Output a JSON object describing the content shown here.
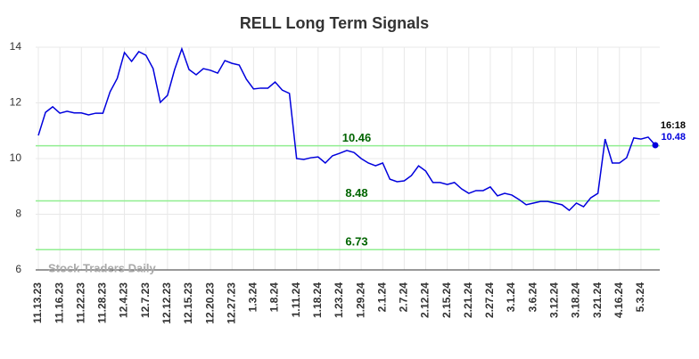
{
  "chart_data": {
    "type": "line",
    "title": "RELL Long Term Signals",
    "categories": [
      "11.13.23",
      null,
      null,
      "11.16.23",
      null,
      null,
      "11.22.23",
      null,
      null,
      "11.28.23",
      null,
      null,
      "12.4.23",
      null,
      null,
      "12.7.23",
      null,
      null,
      "12.12.23",
      null,
      null,
      "12.15.23",
      null,
      null,
      "12.20.23",
      null,
      null,
      "12.27.23",
      null,
      null,
      "1.3.24",
      null,
      null,
      "1.8.24",
      null,
      null,
      "1.11.24",
      null,
      null,
      "1.18.24",
      null,
      null,
      "1.23.24",
      null,
      null,
      "1.29.24",
      null,
      null,
      "2.1.24",
      null,
      null,
      "2.7.24",
      null,
      null,
      "2.12.24",
      null,
      null,
      "2.15.24",
      null,
      null,
      "2.21.24",
      null,
      null,
      "2.27.24",
      null,
      null,
      "3.1.24",
      null,
      null,
      "3.6.24",
      null,
      null,
      "3.12.24",
      null,
      null,
      "3.18.24",
      null,
      null,
      "3.21.24",
      null,
      null,
      "4.16.24",
      null,
      null,
      "5.3.24",
      null,
      null
    ],
    "values": [
      10.83,
      11.66,
      11.86,
      11.63,
      11.7,
      11.64,
      11.64,
      11.57,
      11.63,
      11.63,
      12.4,
      12.88,
      13.81,
      13.49,
      13.84,
      13.71,
      13.23,
      12.02,
      12.27,
      13.2,
      13.94,
      13.2,
      13.01,
      13.23,
      13.17,
      13.07,
      13.52,
      13.42,
      13.36,
      12.85,
      12.5,
      12.53,
      12.53,
      12.75,
      12.46,
      12.34,
      10.0,
      9.97,
      10.03,
      10.06,
      9.84,
      10.1,
      10.19,
      10.29,
      10.22,
      10.0,
      9.84,
      9.74,
      9.84,
      9.26,
      9.17,
      9.2,
      9.39,
      9.74,
      9.55,
      9.14,
      9.14,
      9.07,
      9.14,
      8.91,
      8.75,
      8.85,
      8.85,
      8.98,
      8.66,
      8.75,
      8.69,
      8.53,
      8.34,
      8.4,
      8.46,
      8.46,
      8.4,
      8.34,
      8.14,
      8.4,
      8.27,
      8.59,
      8.75,
      10.7,
      9.84,
      9.84,
      10.03,
      10.74,
      10.7,
      10.77,
      10.48
    ],
    "color": "#0000dd",
    "ylim": [
      6,
      14
    ],
    "yticks": [
      6,
      8,
      10,
      12,
      14
    ],
    "grid": true,
    "levels": [
      10.46,
      8.48,
      6.73
    ],
    "level_color": "#90ee90",
    "level_label_color": "#006400",
    "last_time": "16:18",
    "last_value": 10.48,
    "watermark": "Stock Traders Daily"
  }
}
